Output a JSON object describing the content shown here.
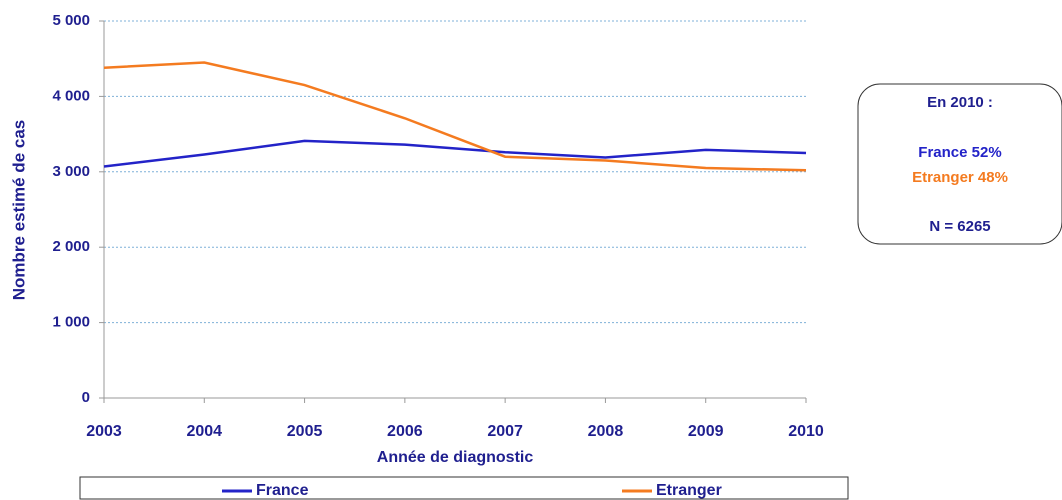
{
  "chart_data": {
    "type": "line",
    "ylabel": "Nombre estimé de cas",
    "xlabel": "Année de diagnostic",
    "categories": [
      "2003",
      "2004",
      "2005",
      "2006",
      "2007",
      "2008",
      "2009",
      "2010"
    ],
    "series": [
      {
        "name": "France",
        "color": "#2323c8",
        "values": [
          3070,
          3230,
          3410,
          3360,
          3260,
          3190,
          3290,
          3250
        ]
      },
      {
        "name": "Etranger",
        "color": "#f47b20",
        "values": [
          4380,
          4450,
          4150,
          3710,
          3200,
          3150,
          3050,
          3020
        ]
      }
    ],
    "ylim": [
      0,
      5000
    ],
    "yticks": [
      0,
      {
        "value": 1000,
        "label": "1 000"
      },
      {
        "value": 2000,
        "label": "2 000"
      },
      {
        "value": 3000,
        "label": "3 000"
      },
      {
        "value": 4000,
        "label": "4 000"
      },
      {
        "value": 5000,
        "label": "5 000"
      }
    ],
    "grid": true,
    "legend": "bottom",
    "annotations": [
      {
        "text": "En 2010 :",
        "color": "#1f1f8f"
      },
      {
        "text": "France 52%",
        "color": "#2323c8"
      },
      {
        "text": "Etranger 48%",
        "color": "#f47b20"
      },
      {
        "text": "N = 6265",
        "color": "#1f1f8f"
      }
    ]
  }
}
